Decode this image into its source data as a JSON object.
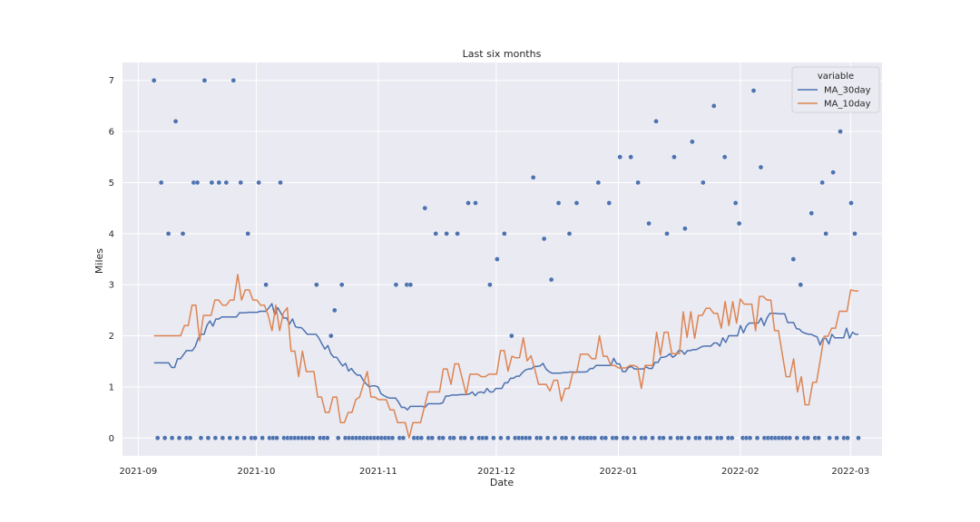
{
  "chart_data": {
    "type": "line",
    "title": "Last six months",
    "xlabel": "Date",
    "ylabel": "Miles",
    "x_start": "2021-09-05",
    "x_end": "2022-03-03",
    "xlim": [
      "2021-08-28",
      "2022-03-09"
    ],
    "ylim": [
      -0.35,
      7.35
    ],
    "x_ticks": [
      "2021-09-01",
      "2021-10-01",
      "2021-11-01",
      "2021-12-01",
      "2022-01-01",
      "2022-02-01",
      "2022-03-01"
    ],
    "x_tick_labels": [
      "2021-09",
      "2021-10",
      "2021-11",
      "2021-12",
      "2022-01",
      "2022-02",
      "2022-03"
    ],
    "y_ticks": [
      0,
      1,
      2,
      3,
      4,
      5,
      6,
      7
    ],
    "grid": true,
    "legend_title": "variable",
    "legend_position": "top-right",
    "series": [
      {
        "name": "Miles",
        "kind": "scatter",
        "color": "#4c72b0",
        "values": [
          7,
          0,
          5,
          0,
          4,
          0,
          6.2,
          0,
          4,
          0,
          0,
          5,
          5,
          0,
          7,
          0,
          5,
          0,
          5,
          0,
          5,
          0,
          7,
          0,
          5,
          0,
          4,
          0,
          0,
          5,
          0,
          3,
          0,
          0,
          0,
          5,
          0,
          0,
          0,
          0,
          0,
          0,
          0,
          0,
          0,
          3,
          0,
          0,
          0,
          2,
          2.5,
          0,
          3,
          0,
          0,
          0,
          0,
          0,
          0,
          0,
          0,
          0,
          0,
          0,
          0,
          0,
          0,
          3,
          0,
          0,
          3,
          3,
          0,
          0,
          0,
          4.5,
          0,
          0,
          4,
          0,
          0,
          4,
          0,
          0,
          4,
          0,
          0,
          4.6,
          0,
          4.6,
          0,
          0,
          0,
          3,
          0,
          3.5,
          0,
          4,
          0,
          2,
          0,
          0,
          0,
          0,
          0,
          5.1,
          0,
          0,
          3.9,
          0,
          3.1,
          0,
          4.6,
          0,
          0,
          4,
          0,
          4.6,
          0,
          0,
          0,
          0,
          0,
          5,
          0,
          0,
          4.6,
          0,
          0,
          5.5,
          0,
          0,
          5.5,
          0,
          5,
          0,
          0,
          4.2,
          0,
          6.2,
          0,
          0,
          4,
          0,
          5.5,
          0,
          0,
          4.1,
          0,
          5.8,
          0,
          0,
          5,
          0,
          0,
          6.5,
          0,
          0,
          5.5,
          0,
          0,
          4.6,
          4.2,
          0,
          0,
          0,
          6.8,
          0,
          5.3,
          0,
          0,
          0,
          0,
          0,
          0,
          0,
          0,
          3.5,
          0,
          3,
          0,
          0,
          4.4,
          0,
          0,
          5,
          4,
          0,
          5.2,
          0,
          6,
          0,
          0,
          4.6,
          4,
          0
        ]
      },
      {
        "name": "MA_30day",
        "kind": "line",
        "color": "#4c72b0",
        "values": [
          1.47,
          1.47,
          1.47,
          1.47,
          1.47,
          1.47,
          1.38,
          1.38,
          1.55,
          1.55,
          1.63,
          1.71,
          1.71,
          1.71,
          1.79,
          1.95,
          2.03,
          2.03,
          2.21,
          2.29,
          2.19,
          2.33,
          2.33,
          2.37,
          2.37,
          2.37,
          2.37,
          2.37,
          2.37,
          2.45,
          2.45,
          2.45,
          2.46,
          2.46,
          2.46,
          2.46,
          2.48,
          2.48,
          2.48,
          2.55,
          2.63,
          2.41,
          2.55,
          2.45,
          2.35,
          2.35,
          2.23,
          2.33,
          2.18,
          2.16,
          2.16,
          2.1,
          2.03,
          2.03,
          2.03,
          2.03,
          1.95,
          1.84,
          1.74,
          1.81,
          1.65,
          1.58,
          1.58,
          1.49,
          1.41,
          1.46,
          1.31,
          1.36,
          1.28,
          1.23,
          1.23,
          1.13,
          1.06,
          1.0,
          1.02,
          1.02,
          1.0,
          0.87,
          0.83,
          0.8,
          0.78,
          0.78,
          0.78,
          0.7,
          0.6,
          0.6,
          0.55,
          0.62,
          0.62,
          0.62,
          0.62,
          0.62,
          0.6,
          0.67,
          0.67,
          0.67,
          0.67,
          0.67,
          0.69,
          0.82,
          0.82,
          0.84,
          0.84,
          0.84,
          0.85,
          0.85,
          0.85,
          0.86,
          0.9,
          0.83,
          0.89,
          0.9,
          0.88,
          0.97,
          0.9,
          0.9,
          0.97,
          0.97,
          0.97,
          1.08,
          1.08,
          1.17,
          1.17,
          1.21,
          1.21,
          1.28,
          1.33,
          1.35,
          1.35,
          1.4,
          1.4,
          1.41,
          1.46,
          1.35,
          1.3,
          1.27,
          1.27,
          1.27,
          1.27,
          1.28,
          1.28,
          1.29,
          1.29,
          1.29,
          1.29,
          1.29,
          1.29,
          1.3,
          1.36,
          1.36,
          1.42,
          1.42,
          1.42,
          1.42,
          1.42,
          1.42,
          1.56,
          1.45,
          1.45,
          1.3,
          1.3,
          1.38,
          1.4,
          1.35,
          1.35,
          1.35,
          1.35,
          1.39,
          1.36,
          1.36,
          1.48,
          1.48,
          1.58,
          1.58,
          1.6,
          1.65,
          1.58,
          1.62,
          1.71,
          1.71,
          1.64,
          1.71,
          1.71,
          1.73,
          1.73,
          1.76,
          1.79,
          1.8,
          1.8,
          1.8,
          1.86,
          1.86,
          1.8,
          1.96,
          1.87,
          2.0,
          2.0,
          2.0,
          2.0,
          2.2,
          2.06,
          2.19,
          2.25,
          2.25,
          2.25,
          2.25,
          2.35,
          2.2,
          2.35,
          2.44,
          2.44,
          2.44,
          2.43,
          2.43,
          2.43,
          2.26,
          2.26,
          2.26,
          2.14,
          2.13,
          2.07,
          2.05,
          2.03,
          2.03,
          2.0,
          1.98,
          1.82,
          1.95,
          1.95,
          1.84,
          2.03,
          1.96,
          1.96,
          1.96,
          1.96,
          2.15,
          1.95,
          2.07,
          2.03,
          2.03
        ]
      },
      {
        "name": "MA_10day",
        "kind": "line",
        "color": "#dd8452",
        "values": [
          2.0,
          2.0,
          2.0,
          2.0,
          2.0,
          2.0,
          2.0,
          2.0,
          2.2,
          2.2,
          2.6,
          2.6,
          1.9,
          2.4,
          2.4,
          2.4,
          2.7,
          2.7,
          2.6,
          2.6,
          2.7,
          2.7,
          3.2,
          2.7,
          2.9,
          2.9,
          2.7,
          2.7,
          2.6,
          2.6,
          2.4,
          2.1,
          2.6,
          2.1,
          2.45,
          2.55,
          1.7,
          1.7,
          1.2,
          1.7,
          1.3,
          1.3,
          1.3,
          0.8,
          0.8,
          0.5,
          0.5,
          0.8,
          0.8,
          0.3,
          0.3,
          0.5,
          0.5,
          0.75,
          0.8,
          1.05,
          1.3,
          0.8,
          0.8,
          0.75,
          0.75,
          0.75,
          0.55,
          0.55,
          0.3,
          0.3,
          0.3,
          0.0,
          0.3,
          0.3,
          0.3,
          0.6,
          0.9,
          0.9,
          0.9,
          0.9,
          1.35,
          1.35,
          1.05,
          1.45,
          1.45,
          1.15,
          0.85,
          1.25,
          1.25,
          1.25,
          1.2,
          1.2,
          1.25,
          1.25,
          1.25,
          1.71,
          1.71,
          1.31,
          1.6,
          1.57,
          1.57,
          1.96,
          1.51,
          1.61,
          1.35,
          1.05,
          1.05,
          1.05,
          0.92,
          1.13,
          1.13,
          0.72,
          0.97,
          0.97,
          1.28,
          1.28,
          1.64,
          1.64,
          1.64,
          1.55,
          1.55,
          2.0,
          1.6,
          1.6,
          1.42,
          1.42,
          1.37,
          1.37,
          1.37,
          1.42,
          1.42,
          1.39,
          0.97,
          1.42,
          1.42,
          1.42,
          2.07,
          1.62,
          2.07,
          2.07,
          1.65,
          1.65,
          1.65,
          2.47,
          1.97,
          2.47,
          1.95,
          2.4,
          2.4,
          2.54,
          2.54,
          2.44,
          2.44,
          2.15,
          2.67,
          2.2,
          2.67,
          2.25,
          2.72,
          2.62,
          2.62,
          2.62,
          2.1,
          2.77,
          2.77,
          2.7,
          2.7,
          2.1,
          2.1,
          1.65,
          1.2,
          1.2,
          1.55,
          0.9,
          1.2,
          0.65,
          0.65,
          1.09,
          1.09,
          1.53,
          1.99,
          1.99,
          2.15,
          2.15,
          2.48,
          2.48,
          2.48,
          2.9,
          2.88,
          2.88
        ]
      }
    ]
  }
}
